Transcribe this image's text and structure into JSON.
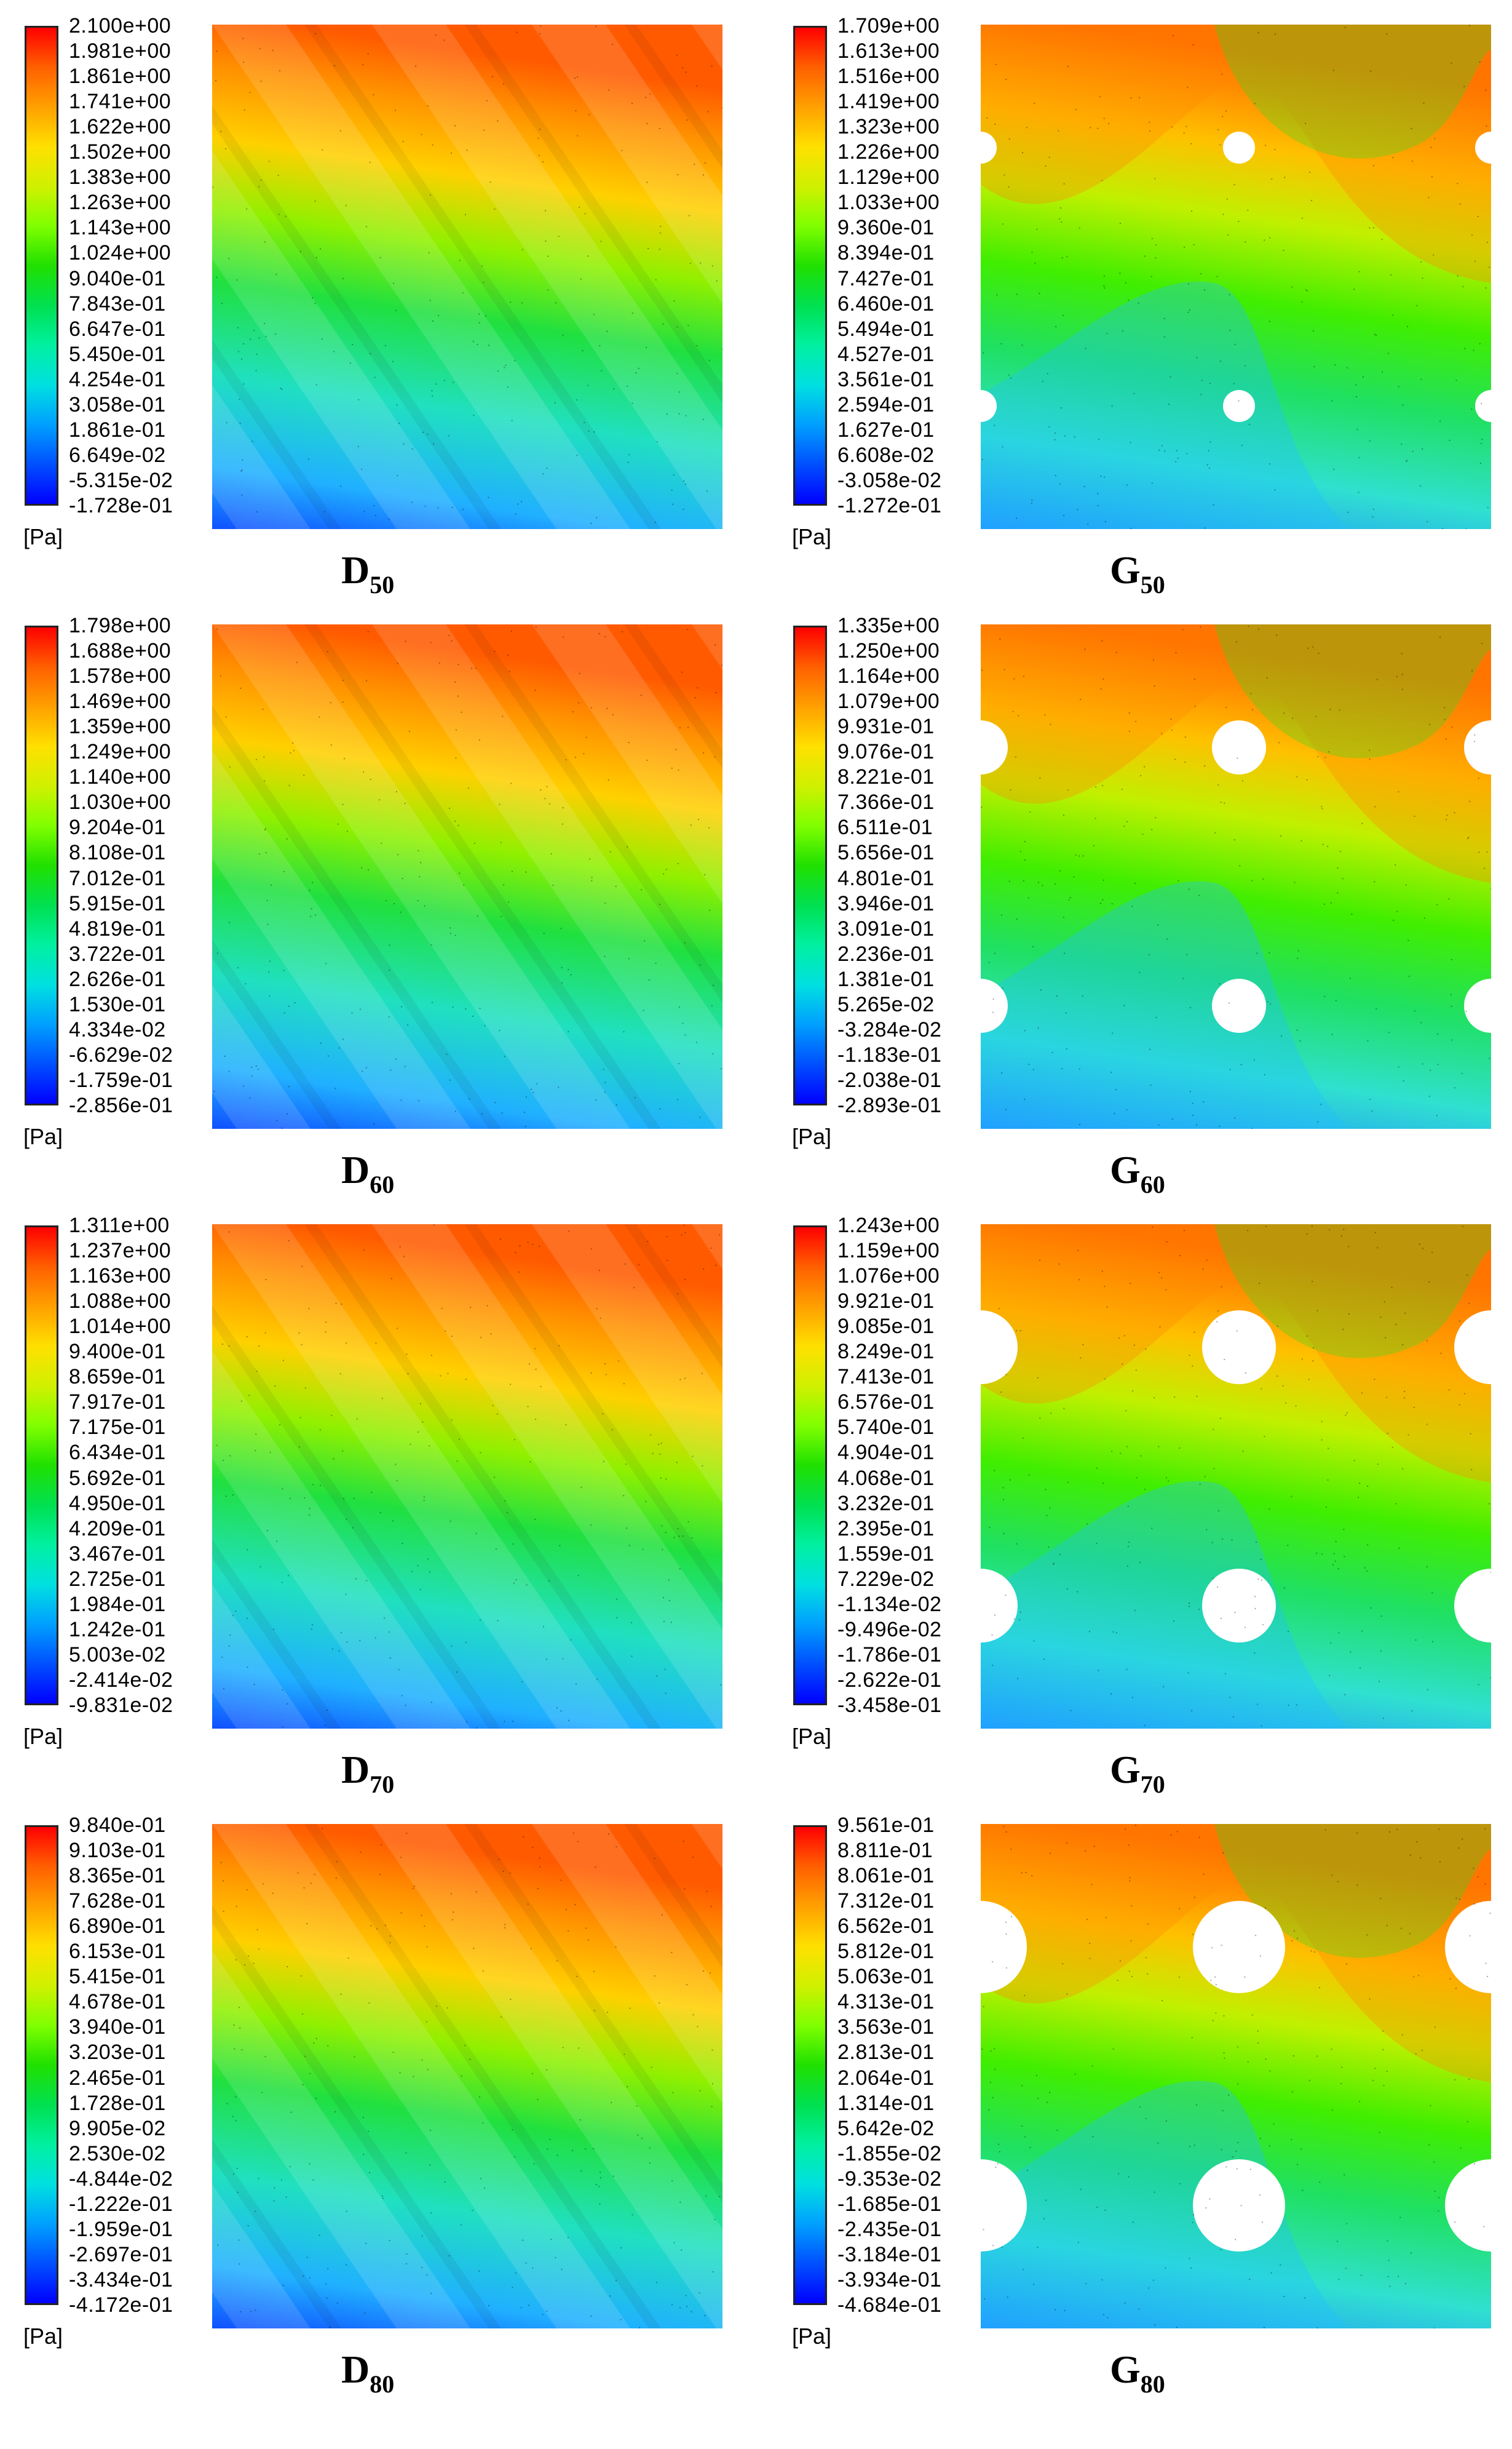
{
  "unit": "[Pa]",
  "panels": [
    {
      "id": "d50",
      "letter": "D",
      "sub": "50",
      "type": "D",
      "ticks": [
        "2.100e+00",
        "1.981e+00",
        "1.861e+00",
        "1.741e+00",
        "1.622e+00",
        "1.502e+00",
        "1.383e+00",
        "1.263e+00",
        "1.143e+00",
        "1.024e+00",
        "9.040e-01",
        "7.843e-01",
        "6.647e-01",
        "5.450e-01",
        "4.254e-01",
        "3.058e-01",
        "1.861e-01",
        "6.649e-02",
        "-5.315e-02",
        "-1.728e-01"
      ]
    },
    {
      "id": "g50",
      "letter": "G",
      "sub": "50",
      "type": "G",
      "hole": "small",
      "ticks": [
        "1.709e+00",
        "1.613e+00",
        "1.516e+00",
        "1.419e+00",
        "1.323e+00",
        "1.226e+00",
        "1.129e+00",
        "1.033e+00",
        "9.360e-01",
        "8.394e-01",
        "7.427e-01",
        "6.460e-01",
        "5.494e-01",
        "4.527e-01",
        "3.561e-01",
        "2.594e-01",
        "1.627e-01",
        "6.608e-02",
        "-3.058e-02",
        "-1.272e-01"
      ]
    },
    {
      "id": "d60",
      "letter": "D",
      "sub": "60",
      "type": "D",
      "ticks": [
        "1.798e+00",
        "1.688e+00",
        "1.578e+00",
        "1.469e+00",
        "1.359e+00",
        "1.249e+00",
        "1.140e+00",
        "1.030e+00",
        "9.204e-01",
        "8.108e-01",
        "7.012e-01",
        "5.915e-01",
        "4.819e-01",
        "3.722e-01",
        "2.626e-01",
        "1.530e-01",
        "4.334e-02",
        "-6.629e-02",
        "-1.759e-01",
        "-2.856e-01"
      ]
    },
    {
      "id": "g60",
      "letter": "G",
      "sub": "60",
      "type": "G",
      "hole": "medium",
      "ticks": [
        "1.335e+00",
        "1.250e+00",
        "1.164e+00",
        "1.079e+00",
        "9.931e-01",
        "9.076e-01",
        "8.221e-01",
        "7.366e-01",
        "6.511e-01",
        "5.656e-01",
        "4.801e-01",
        "3.946e-01",
        "3.091e-01",
        "2.236e-01",
        "1.381e-01",
        "5.265e-02",
        "-3.284e-02",
        "-1.183e-01",
        "-2.038e-01",
        "-2.893e-01"
      ]
    },
    {
      "id": "d70",
      "letter": "D",
      "sub": "70",
      "type": "D",
      "ticks": [
        "1.311e+00",
        "1.237e+00",
        "1.163e+00",
        "1.088e+00",
        "1.014e+00",
        "9.400e-01",
        "8.659e-01",
        "7.917e-01",
        "7.175e-01",
        "6.434e-01",
        "5.692e-01",
        "4.950e-01",
        "4.209e-01",
        "3.467e-01",
        "2.725e-01",
        "1.984e-01",
        "1.242e-01",
        "5.003e-02",
        "-2.414e-02",
        "-9.831e-02"
      ]
    },
    {
      "id": "g70",
      "letter": "G",
      "sub": "70",
      "type": "G",
      "hole": "large",
      "ticks": [
        "1.243e+00",
        "1.159e+00",
        "1.076e+00",
        "9.921e-01",
        "9.085e-01",
        "8.249e-01",
        "7.413e-01",
        "6.576e-01",
        "5.740e-01",
        "4.904e-01",
        "4.068e-01",
        "3.232e-01",
        "2.395e-01",
        "1.559e-01",
        "7.229e-02",
        "-1.134e-02",
        "-9.496e-02",
        "-1.786e-01",
        "-2.622e-01",
        "-3.458e-01"
      ]
    },
    {
      "id": "d80",
      "letter": "D",
      "sub": "80",
      "type": "D",
      "ticks": [
        "9.840e-01",
        "9.103e-01",
        "8.365e-01",
        "7.628e-01",
        "6.890e-01",
        "6.153e-01",
        "5.415e-01",
        "4.678e-01",
        "3.940e-01",
        "3.203e-01",
        "2.465e-01",
        "1.728e-01",
        "9.905e-02",
        "2.530e-02",
        "-4.844e-02",
        "-1.222e-01",
        "-1.959e-01",
        "-2.697e-01",
        "-3.434e-01",
        "-4.172e-01"
      ]
    },
    {
      "id": "g80",
      "letter": "G",
      "sub": "80",
      "type": "G",
      "hole": "xlarge",
      "ticks": [
        "9.561e-01",
        "8.811e-01",
        "8.061e-01",
        "7.312e-01",
        "6.562e-01",
        "5.812e-01",
        "5.063e-01",
        "4.313e-01",
        "3.563e-01",
        "2.813e-01",
        "2.064e-01",
        "1.314e-01",
        "5.642e-02",
        "-1.855e-02",
        "-9.353e-02",
        "-1.685e-01",
        "-2.435e-01",
        "-3.184e-01",
        "-3.934e-01",
        "-4.684e-01"
      ]
    }
  ]
}
